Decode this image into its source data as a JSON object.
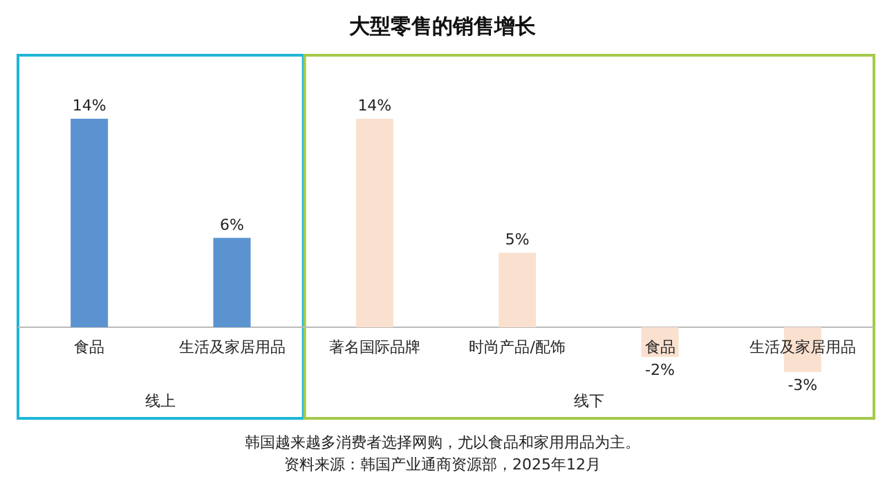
{
  "chart_data": {
    "type": "bar",
    "title": "大型零售的销售增长",
    "categories": [
      "食品",
      "生活及家居用品",
      "著名国际品牌",
      "时尚产品/配饰",
      "食品",
      "生活及家居用品"
    ],
    "values": [
      14,
      6,
      14,
      5,
      -2,
      -3
    ],
    "value_labels": [
      "14%",
      "6%",
      "14%",
      "5%",
      "-2%",
      "-3%"
    ],
    "colors": [
      "#5b93d0",
      "#5b93d0",
      "#f9e0cf",
      "#f9e0cf",
      "#f9e0cf",
      "#f9e0cf"
    ],
    "annotations": [
      "线上",
      "线下",
      "韩国越来越多消费者选择网购，尤以食品和家用用品为主。",
      "资料来源：韩国产业通商资源部，2025年12月"
    ]
  }
}
